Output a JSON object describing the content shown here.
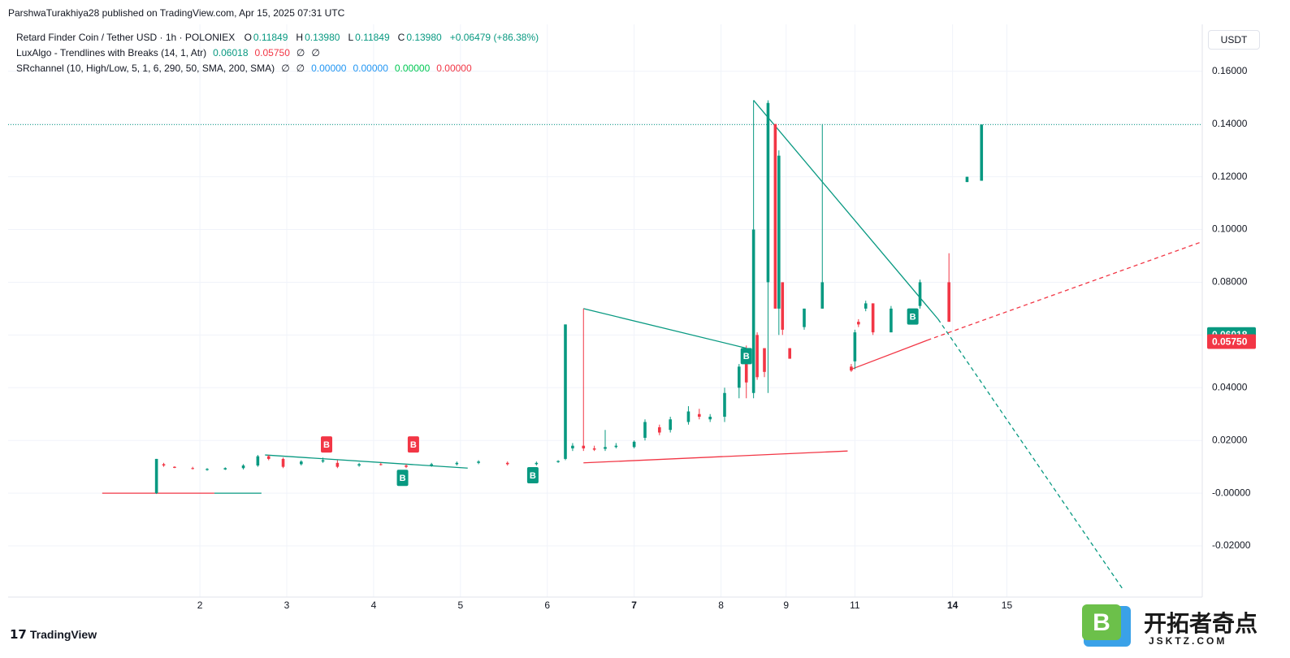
{
  "chart_data": {
    "type": "candlestick",
    "publisher": "ParshwaTurakhiya28 published on TradingView.com, Apr 15, 2025 07:31 UTC",
    "symbol": "Retard Finder Coin / Tether USD · 1h · POLONIEX",
    "ohlc": [
      {
        "label": "O",
        "value": "0.11849"
      },
      {
        "label": "H",
        "value": "0.13980"
      },
      {
        "label": "L",
        "value": "0.11849"
      },
      {
        "label": "C",
        "value": "0.13980"
      }
    ],
    "change": "+0.06479 (+86.38%)",
    "indicators": [
      {
        "name": "LuxAlgo - Trendlines with Breaks (14, 1, Atr)",
        "values": [
          {
            "text": "0.06018",
            "color": "#089981"
          },
          {
            "text": "0.05750",
            "color": "#f23645"
          },
          {
            "text": "∅",
            "color": "#131722"
          },
          {
            "text": "∅",
            "color": "#131722"
          }
        ]
      },
      {
        "name": "SRchannel (10, High/Low, 5, 1, 6, 290, 50, SMA, 200, SMA)",
        "values": [
          {
            "text": "∅",
            "color": "#131722"
          },
          {
            "text": "∅",
            "color": "#131722"
          },
          {
            "text": "0.00000",
            "color": "#2196f3"
          },
          {
            "text": "0.00000",
            "color": "#2196f3"
          },
          {
            "text": "0.00000",
            "color": "#00c853"
          },
          {
            "text": "0.00000",
            "color": "#f23645"
          }
        ]
      }
    ],
    "currency": "USDT",
    "brand": "TradingView",
    "watermark": {
      "name": "开拓者奇点",
      "site": "JSKTZ.COM"
    },
    "up_color": "#089981",
    "down_color": "#f23645",
    "grid": true,
    "xlim": [
      0,
      330
    ],
    "ylim": [
      -0.0394,
      0.1778
    ],
    "xticks": [
      {
        "value": 53,
        "label": "2"
      },
      {
        "value": 77,
        "label": "3"
      },
      {
        "value": 101,
        "label": "4"
      },
      {
        "value": 125,
        "label": "5"
      },
      {
        "value": 149,
        "label": "6"
      },
      {
        "value": 173,
        "label": "7"
      },
      {
        "value": 197,
        "label": "8"
      },
      {
        "value": 215,
        "label": "9"
      },
      {
        "value": 234,
        "label": "11"
      },
      {
        "value": 261,
        "label": "14"
      },
      {
        "value": 276,
        "label": "15"
      }
    ],
    "yticks": [
      {
        "value": 0.16,
        "label": "0.16000"
      },
      {
        "value": 0.14,
        "label": "0.14000"
      },
      {
        "value": 0.12,
        "label": "0.12000"
      },
      {
        "value": 0.1,
        "label": "0.10000"
      },
      {
        "value": 0.08,
        "label": "0.08000"
      },
      {
        "value": 0.06,
        "label": "0.06000"
      },
      {
        "value": 0.04,
        "label": "0.04000"
      },
      {
        "value": 0.02,
        "label": "0.02000"
      },
      {
        "value": 0,
        "label": "-0.00000"
      },
      {
        "value": -0.02,
        "label": "-0.02000"
      }
    ],
    "price_line": 0.1398,
    "price_tags": [
      {
        "value": 0.06018,
        "label": "0.06018",
        "color": "#089981"
      },
      {
        "value": 0.0575,
        "label": "0.05750",
        "color": "#f23645"
      }
    ],
    "candles": [
      {
        "x": 41,
        "o": 0.0,
        "h": 0.013,
        "l": -0.0003,
        "c": 0.013
      },
      {
        "x": 43,
        "o": 0.011,
        "h": 0.0115,
        "l": 0.01,
        "c": 0.0105
      },
      {
        "x": 46,
        "o": 0.01,
        "h": 0.0102,
        "l": 0.0095,
        "c": 0.0096
      },
      {
        "x": 51,
        "o": 0.0095,
        "h": 0.01,
        "l": 0.009,
        "c": 0.0092
      },
      {
        "x": 55,
        "o": 0.0088,
        "h": 0.0095,
        "l": 0.0085,
        "c": 0.0092
      },
      {
        "x": 60,
        "o": 0.009,
        "h": 0.0098,
        "l": 0.0088,
        "c": 0.0095
      },
      {
        "x": 65,
        "o": 0.0095,
        "h": 0.011,
        "l": 0.009,
        "c": 0.0105
      },
      {
        "x": 69,
        "o": 0.0105,
        "h": 0.0145,
        "l": 0.01,
        "c": 0.014
      },
      {
        "x": 72,
        "o": 0.014,
        "h": 0.0145,
        "l": 0.0125,
        "c": 0.013
      },
      {
        "x": 76,
        "o": 0.013,
        "h": 0.0135,
        "l": 0.0095,
        "c": 0.01
      },
      {
        "x": 81,
        "o": 0.011,
        "h": 0.0125,
        "l": 0.0105,
        "c": 0.012
      },
      {
        "x": 87,
        "o": 0.012,
        "h": 0.0135,
        "l": 0.0115,
        "c": 0.0125
      },
      {
        "x": 91,
        "o": 0.0115,
        "h": 0.0125,
        "l": 0.0095,
        "c": 0.01
      },
      {
        "x": 97,
        "o": 0.0105,
        "h": 0.0115,
        "l": 0.01,
        "c": 0.011
      },
      {
        "x": 103,
        "o": 0.011,
        "h": 0.0115,
        "l": 0.0105,
        "c": 0.0108
      },
      {
        "x": 110,
        "o": 0.0105,
        "h": 0.011,
        "l": 0.0095,
        "c": 0.01
      },
      {
        "x": 117,
        "o": 0.0105,
        "h": 0.0115,
        "l": 0.01,
        "c": 0.011
      },
      {
        "x": 124,
        "o": 0.011,
        "h": 0.012,
        "l": 0.0105,
        "c": 0.0115
      },
      {
        "x": 130,
        "o": 0.0115,
        "h": 0.0125,
        "l": 0.011,
        "c": 0.012
      },
      {
        "x": 138,
        "o": 0.0115,
        "h": 0.012,
        "l": 0.0105,
        "c": 0.011
      },
      {
        "x": 146,
        "o": 0.011,
        "h": 0.012,
        "l": 0.0105,
        "c": 0.0115
      },
      {
        "x": 152,
        "o": 0.0118,
        "h": 0.0125,
        "l": 0.0115,
        "c": 0.0122
      },
      {
        "x": 154,
        "o": 0.013,
        "h": 0.064,
        "l": 0.0125,
        "c": 0.064
      },
      {
        "x": 156,
        "o": 0.017,
        "h": 0.019,
        "l": 0.016,
        "c": 0.018
      },
      {
        "x": 159,
        "o": 0.018,
        "h": 0.07,
        "l": 0.016,
        "c": 0.017
      },
      {
        "x": 162,
        "o": 0.017,
        "h": 0.018,
        "l": 0.016,
        "c": 0.0165
      },
      {
        "x": 165,
        "o": 0.0168,
        "h": 0.024,
        "l": 0.016,
        "c": 0.0175
      },
      {
        "x": 168,
        "o": 0.0175,
        "h": 0.019,
        "l": 0.017,
        "c": 0.018
      },
      {
        "x": 173,
        "o": 0.0175,
        "h": 0.02,
        "l": 0.017,
        "c": 0.0195
      },
      {
        "x": 176,
        "o": 0.021,
        "h": 0.028,
        "l": 0.02,
        "c": 0.027
      },
      {
        "x": 180,
        "o": 0.025,
        "h": 0.026,
        "l": 0.022,
        "c": 0.023
      },
      {
        "x": 183,
        "o": 0.024,
        "h": 0.029,
        "l": 0.023,
        "c": 0.028
      },
      {
        "x": 188,
        "o": 0.027,
        "h": 0.033,
        "l": 0.026,
        "c": 0.031
      },
      {
        "x": 191,
        "o": 0.03,
        "h": 0.032,
        "l": 0.028,
        "c": 0.029
      },
      {
        "x": 194,
        "o": 0.028,
        "h": 0.03,
        "l": 0.027,
        "c": 0.029
      },
      {
        "x": 198,
        "o": 0.029,
        "h": 0.04,
        "l": 0.027,
        "c": 0.038
      },
      {
        "x": 202,
        "o": 0.04,
        "h": 0.049,
        "l": 0.036,
        "c": 0.048
      },
      {
        "x": 204,
        "o": 0.054,
        "h": 0.056,
        "l": 0.036,
        "c": 0.042
      },
      {
        "x": 206,
        "o": 0.038,
        "h": 0.149,
        "l": 0.036,
        "c": 0.1
      },
      {
        "x": 207,
        "o": 0.06,
        "h": 0.061,
        "l": 0.043,
        "c": 0.044
      },
      {
        "x": 209,
        "o": 0.055,
        "h": 0.055,
        "l": 0.044,
        "c": 0.046
      },
      {
        "x": 210,
        "o": 0.08,
        "h": 0.149,
        "l": 0.038,
        "c": 0.148
      },
      {
        "x": 212,
        "o": 0.14,
        "h": 0.14,
        "l": 0.07,
        "c": 0.07
      },
      {
        "x": 213,
        "o": 0.07,
        "h": 0.13,
        "l": 0.06,
        "c": 0.128
      },
      {
        "x": 214,
        "o": 0.08,
        "h": 0.08,
        "l": 0.06,
        "c": 0.062
      },
      {
        "x": 216,
        "o": 0.055,
        "h": 0.055,
        "l": 0.051,
        "c": 0.051
      },
      {
        "x": 220,
        "o": 0.063,
        "h": 0.07,
        "l": 0.062,
        "c": 0.07
      },
      {
        "x": 225,
        "o": 0.07,
        "h": 0.14,
        "l": 0.07,
        "c": 0.08
      },
      {
        "x": 233,
        "o": 0.048,
        "h": 0.049,
        "l": 0.046,
        "c": 0.0465
      },
      {
        "x": 234,
        "o": 0.05,
        "h": 0.062,
        "l": 0.047,
        "c": 0.061
      },
      {
        "x": 235,
        "o": 0.065,
        "h": 0.066,
        "l": 0.063,
        "c": 0.064
      },
      {
        "x": 237,
        "o": 0.07,
        "h": 0.073,
        "l": 0.069,
        "c": 0.072
      },
      {
        "x": 239,
        "o": 0.072,
        "h": 0.072,
        "l": 0.06,
        "c": 0.061
      },
      {
        "x": 244,
        "o": 0.061,
        "h": 0.071,
        "l": 0.061,
        "c": 0.07
      },
      {
        "x": 252,
        "o": 0.071,
        "h": 0.081,
        "l": 0.07,
        "c": 0.08
      },
      {
        "x": 260,
        "o": 0.08,
        "h": 0.091,
        "l": 0.065,
        "c": 0.065
      },
      {
        "x": 265,
        "o": 0.118,
        "h": 0.12,
        "l": 0.118,
        "c": 0.12
      },
      {
        "x": 269,
        "o": 0.11849,
        "h": 0.1398,
        "l": 0.11849,
        "c": 0.1398
      }
    ],
    "trendlines": [
      {
        "color": "#089981",
        "dashed": false,
        "points": [
          [
            159,
            0.07
          ],
          [
            204,
            0.055
          ]
        ]
      },
      {
        "color": "#089981",
        "dashed": false,
        "points": [
          [
            206,
            0.149
          ],
          [
            257,
            0.066
          ]
        ]
      },
      {
        "color": "#089981",
        "dashed": true,
        "points": [
          [
            257,
            0.066
          ],
          [
            308,
            -0.0363
          ]
        ]
      },
      {
        "color": "#f23645",
        "dashed": false,
        "points": [
          [
            233,
            0.047
          ],
          [
            254,
            0.058
          ]
        ]
      },
      {
        "color": "#f23645",
        "dashed": true,
        "points": [
          [
            254,
            0.058
          ],
          [
            330,
            0.0954
          ]
        ]
      },
      {
        "color": "#f23645",
        "dashed": false,
        "points": [
          [
            159,
            0.0115
          ],
          [
            232,
            0.016
          ]
        ]
      },
      {
        "color": "#089981",
        "dashed": false,
        "points": [
          [
            71,
            0.0145
          ],
          [
            127,
            0.0095
          ]
        ]
      },
      {
        "color": "#f23645",
        "dashed": false,
        "points": [
          [
            26,
            0.0
          ],
          [
            57,
            0.0
          ]
        ]
      },
      {
        "color": "#089981",
        "dashed": false,
        "points": [
          [
            57,
            0.0
          ],
          [
            70,
            0.0
          ]
        ]
      }
    ],
    "signals": [
      {
        "x": 88,
        "y": 0.0185,
        "label": "B",
        "color": "#f23645"
      },
      {
        "x": 112,
        "y": 0.0185,
        "label": "B",
        "color": "#f23645"
      },
      {
        "x": 109,
        "y": 0.0058,
        "label": "B",
        "color": "#089981"
      },
      {
        "x": 145,
        "y": 0.0068,
        "label": "B",
        "color": "#089981"
      },
      {
        "x": 204,
        "y": 0.052,
        "label": "B",
        "color": "#089981"
      },
      {
        "x": 250,
        "y": 0.067,
        "label": "B",
        "color": "#089981"
      }
    ]
  }
}
